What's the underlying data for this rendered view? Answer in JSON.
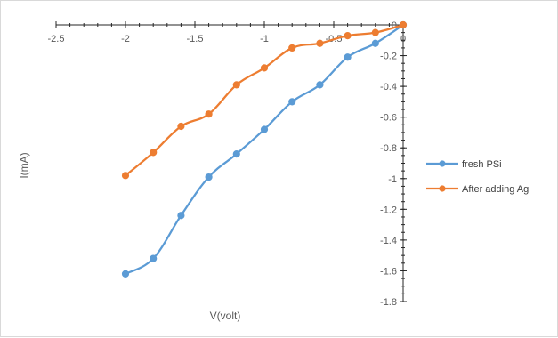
{
  "chart_data": {
    "type": "line",
    "title": "",
    "xlabel": "V(volt)",
    "ylabel": "I(mA)",
    "xlim": [
      -2.5,
      0
    ],
    "ylim": [
      -1.8,
      0
    ],
    "x_ticks": [
      "-2.5",
      "-2",
      "-1.5",
      "-1",
      "-0.5",
      "0"
    ],
    "y_ticks": [
      "0",
      "-0.2",
      "-0.4",
      "-0.6",
      "-0.8",
      "-1",
      "-1.2",
      "-1.4",
      "-1.6",
      "-1.8"
    ],
    "grid": false,
    "legend_position": "right",
    "series": [
      {
        "name": "fresh PSi",
        "color": "#5b9bd5",
        "points": [
          [
            -2.0,
            -1.62
          ],
          [
            -1.8,
            -1.52
          ],
          [
            -1.6,
            -1.24
          ],
          [
            -1.4,
            -0.99
          ],
          [
            -1.2,
            -0.84
          ],
          [
            -1.0,
            -0.68
          ],
          [
            -0.8,
            -0.5
          ],
          [
            -0.6,
            -0.39
          ],
          [
            -0.4,
            -0.21
          ],
          [
            -0.2,
            -0.12
          ],
          [
            0.0,
            0.0
          ]
        ]
      },
      {
        "name": "After adding Ag",
        "color": "#ed7d31",
        "points": [
          [
            -2.0,
            -0.98
          ],
          [
            -1.8,
            -0.83
          ],
          [
            -1.6,
            -0.66
          ],
          [
            -1.4,
            -0.58
          ],
          [
            -1.2,
            -0.39
          ],
          [
            -1.0,
            -0.28
          ],
          [
            -0.8,
            -0.15
          ],
          [
            -0.6,
            -0.12
          ],
          [
            -0.4,
            -0.07
          ],
          [
            -0.2,
            -0.05
          ],
          [
            0.0,
            0.0
          ]
        ]
      }
    ]
  }
}
